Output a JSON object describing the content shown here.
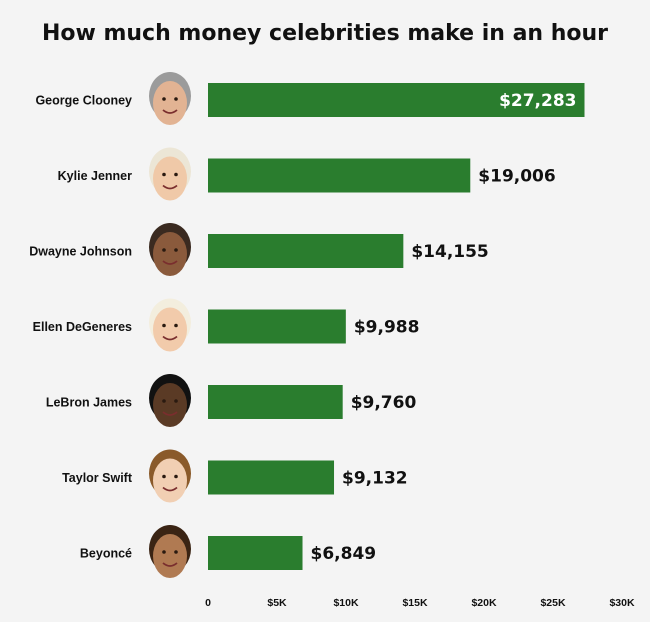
{
  "chart_data": {
    "type": "bar",
    "orientation": "horizontal",
    "title": "How much money celebrities make in an hour",
    "xlabel": "",
    "ylabel": "",
    "categories": [
      "George Clooney",
      "Kylie Jenner",
      "Dwayne Johnson",
      "Ellen DeGeneres",
      "LeBron James",
      "Taylor Swift",
      "Beyoncé"
    ],
    "values": [
      27283,
      19006,
      14155,
      9988,
      9760,
      9132,
      6849
    ],
    "value_labels": [
      "$27,283",
      "$19,006",
      "$14,155",
      "$9,988",
      "$9,760",
      "$9,132",
      "$6,849"
    ],
    "xlim": [
      0,
      30000
    ],
    "x_ticks": [
      0,
      5000,
      10000,
      15000,
      20000,
      25000,
      30000
    ],
    "x_tick_labels": [
      "0",
      "$5K",
      "$10K",
      "$15K",
      "$20K",
      "$25K",
      "$30K"
    ],
    "grid": false,
    "legend": "none",
    "bar_color": "#2a7d2e",
    "inside_label_color": "#ffffff",
    "outside_label_color": "#111111",
    "face_icons": [
      "george-clooney-face-icon",
      "kylie-jenner-face-icon",
      "dwayne-johnson-face-icon",
      "ellen-degeneres-face-icon",
      "lebron-james-face-icon",
      "taylor-swift-face-icon",
      "beyonce-face-icon"
    ]
  }
}
